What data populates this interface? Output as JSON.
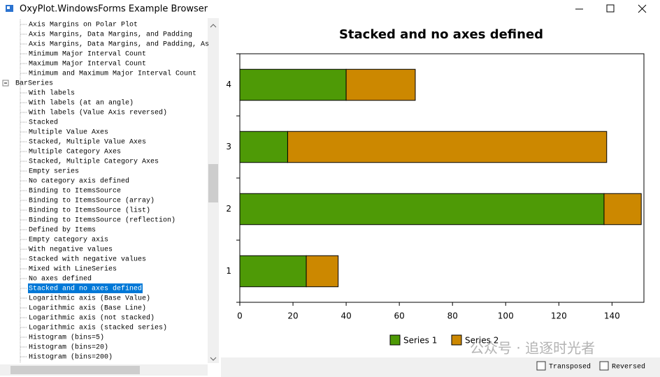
{
  "window": {
    "title": "OxyPlot.WindowsForms Example Browser"
  },
  "tree": {
    "items": [
      {
        "label": "Axis Margins on Polar Plot",
        "level": 1
      },
      {
        "label": "Axis Margins, Data Margins, and Padding",
        "level": 1
      },
      {
        "label": "Axis Margins, Data Margins, and Padding, As",
        "level": 1
      },
      {
        "label": "Minimum Major Interval Count",
        "level": 1
      },
      {
        "label": "Maximum Major Interval Count",
        "level": 1
      },
      {
        "label": "Minimum and Maximum Major Interval Count",
        "level": 1
      },
      {
        "label": "BarSeries",
        "level": 0
      },
      {
        "label": "With labels",
        "level": 1
      },
      {
        "label": "With labels (at an angle)",
        "level": 1
      },
      {
        "label": "With labels (Value Axis reversed)",
        "level": 1
      },
      {
        "label": "Stacked",
        "level": 1
      },
      {
        "label": "Multiple Value Axes",
        "level": 1
      },
      {
        "label": "Stacked, Multiple Value Axes",
        "level": 1
      },
      {
        "label": "Multiple Category Axes",
        "level": 1
      },
      {
        "label": "Stacked, Multiple Category Axes",
        "level": 1
      },
      {
        "label": "Empty series",
        "level": 1
      },
      {
        "label": "No category axis defined",
        "level": 1
      },
      {
        "label": "Binding to ItemsSource",
        "level": 1
      },
      {
        "label": "Binding to ItemsSource (array)",
        "level": 1
      },
      {
        "label": "Binding to ItemsSource (list)",
        "level": 1
      },
      {
        "label": "Binding to ItemsSource (reflection)",
        "level": 1
      },
      {
        "label": "Defined by Items",
        "level": 1
      },
      {
        "label": "Empty category axis",
        "level": 1
      },
      {
        "label": "With negative values",
        "level": 1
      },
      {
        "label": "Stacked with negative values",
        "level": 1
      },
      {
        "label": "Mixed with LineSeries",
        "level": 1
      },
      {
        "label": "No axes defined",
        "level": 1
      },
      {
        "label": "Stacked and no axes defined",
        "level": 1
      },
      {
        "label": "Logarithmic axis (Base Value)",
        "level": 1
      },
      {
        "label": "Logarithmic axis (Base Line)",
        "level": 1
      },
      {
        "label": "Logarithmic axis (not stacked)",
        "level": 1
      },
      {
        "label": "Logarithmic axis (stacked series)",
        "level": 1
      },
      {
        "label": "Histogram (bins=5)",
        "level": 1
      },
      {
        "label": "Histogram (bins=20)",
        "level": 1
      },
      {
        "label": "Histogram (bins=200)",
        "level": 1
      }
    ],
    "selected_index": 27
  },
  "chart_data": {
    "type": "stacked_hbar",
    "title": "Stacked and no axes defined",
    "categories": [
      "1",
      "2",
      "3",
      "4"
    ],
    "series": [
      {
        "name": "Series 1",
        "color": "#4e9a06",
        "values": [
          25,
          137,
          18,
          40
        ]
      },
      {
        "name": "Series 2",
        "color": "#cc8800",
        "values": [
          12,
          14,
          120,
          26
        ]
      }
    ],
    "xlim": [
      0,
      152
    ],
    "xticks": [
      0,
      20,
      40,
      60,
      80,
      100,
      120,
      140
    ],
    "legend": "bottom"
  },
  "options": [
    {
      "label": "Transposed",
      "checked": false
    },
    {
      "label": "Reversed",
      "checked": false
    }
  ],
  "watermark": "公众号 · 追逐时光者"
}
